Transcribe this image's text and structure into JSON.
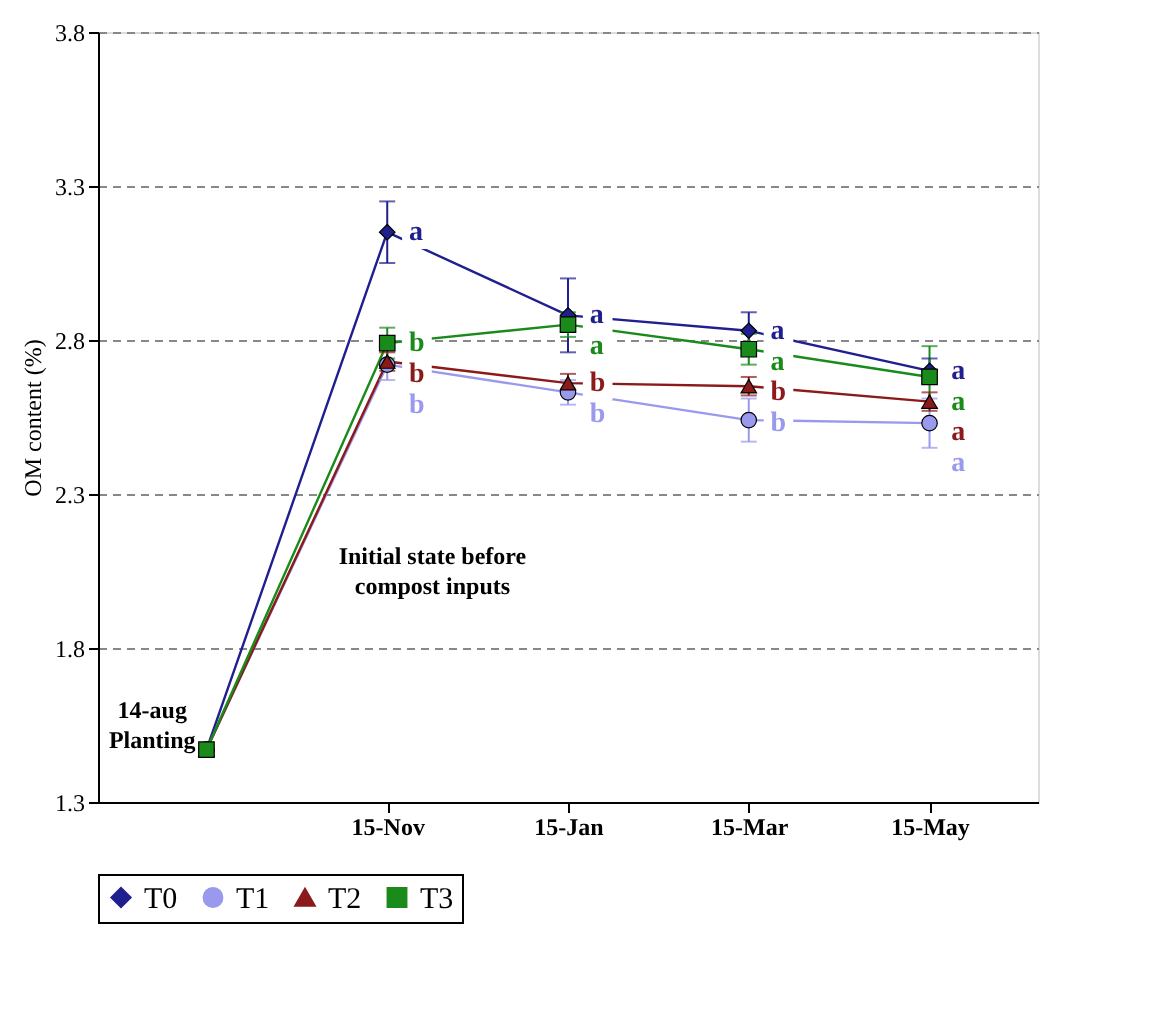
{
  "chart_data": {
    "type": "line",
    "ylabel": "OM content (%)",
    "categories": [
      null,
      "15-Nov",
      "15-Jan",
      "15-Mar",
      "15-May"
    ],
    "ylim": [
      1.3,
      3.8
    ],
    "yticks": [
      1.3,
      1.8,
      2.3,
      2.8,
      3.3,
      3.8
    ],
    "grid": "y",
    "legend": "bottom",
    "series": [
      {
        "name": "T0",
        "color": "#1f1f8f",
        "marker": "diamond",
        "values": [
          1.47,
          3.15,
          2.88,
          2.83,
          2.7
        ],
        "errors": [
          null,
          0.1,
          0.12,
          0.06,
          0.04
        ],
        "value_labels": [
          null,
          "a",
          "a",
          "a",
          "a"
        ]
      },
      {
        "name": "T1",
        "color": "#9999ee",
        "marker": "circle",
        "values": [
          1.47,
          2.72,
          2.63,
          2.54,
          2.53
        ],
        "errors": [
          null,
          0.05,
          0.04,
          0.07,
          0.08
        ],
        "value_labels": [
          null,
          "b",
          "b",
          "b",
          "a"
        ]
      },
      {
        "name": "T2",
        "color": "#8b1a1a",
        "marker": "triangle",
        "values": [
          1.47,
          2.73,
          2.66,
          2.65,
          2.6
        ],
        "errors": [
          null,
          0.03,
          0.03,
          0.03,
          0.03
        ],
        "value_labels": [
          null,
          "b",
          "b",
          "b",
          "a"
        ]
      },
      {
        "name": "T3",
        "color": "#1a8a1a",
        "marker": "square",
        "values": [
          1.47,
          2.79,
          2.85,
          2.77,
          2.68
        ],
        "errors": [
          null,
          0.05,
          0.04,
          0.05,
          0.1
        ],
        "value_labels": [
          null,
          "b",
          "a",
          "a",
          "a"
        ]
      }
    ],
    "annotations": [
      "14-aug\nPlanting",
      "Initial state before compost inputs"
    ]
  }
}
